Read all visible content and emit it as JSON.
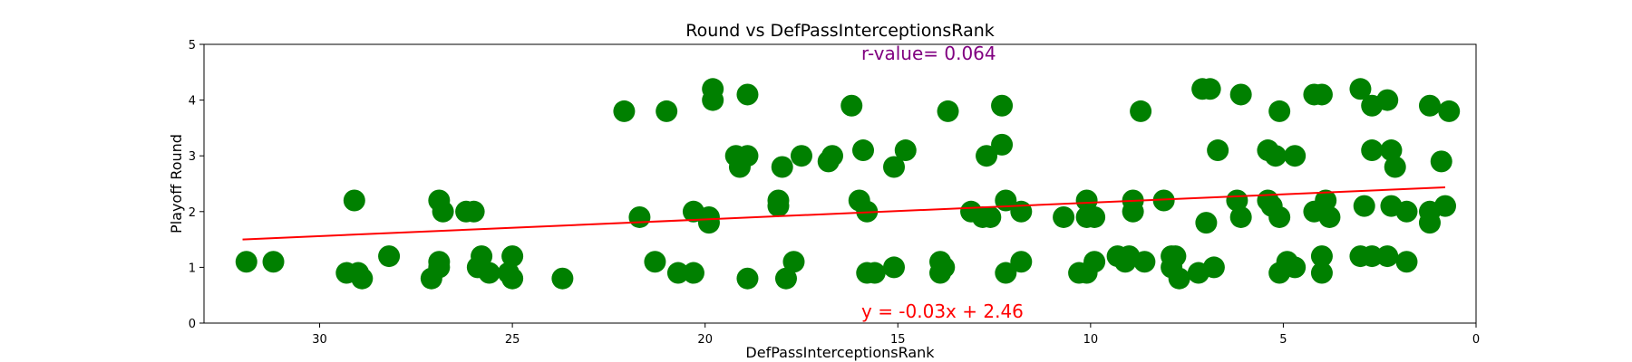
{
  "chart_data": {
    "type": "scatter",
    "title": "Round vs DefPassInterceptionsRank",
    "xlabel": "DefPassInterceptionsRank",
    "ylabel": "Playoff Round",
    "xlim": [
      33,
      0
    ],
    "ylim": [
      0,
      5
    ],
    "x_ticks": [
      30,
      25,
      20,
      15,
      10,
      5,
      0
    ],
    "y_ticks": [
      0,
      1,
      2,
      3,
      4,
      5
    ],
    "x_inverted": true,
    "grid": false,
    "point_color": "#008000",
    "line_color": "#ff0000",
    "regression": {
      "slope": -0.03,
      "intercept": 2.46,
      "x_range": [
        32,
        0.8
      ]
    },
    "annotations": {
      "r_value": {
        "text": "r-value= 0.064",
        "color": "#800080"
      },
      "equation": {
        "text": "y = -0.03x + 2.46",
        "color": "#ff0000"
      }
    },
    "points": [
      {
        "x": 31.9,
        "y": 1.1
      },
      {
        "x": 31.2,
        "y": 1.1
      },
      {
        "x": 29.3,
        "y": 0.9
      },
      {
        "x": 29.0,
        "y": 0.9
      },
      {
        "x": 28.9,
        "y": 0.8
      },
      {
        "x": 29.1,
        "y": 2.2
      },
      {
        "x": 28.2,
        "y": 1.2
      },
      {
        "x": 27.1,
        "y": 0.8
      },
      {
        "x": 26.9,
        "y": 1.0
      },
      {
        "x": 26.9,
        "y": 1.1
      },
      {
        "x": 26.9,
        "y": 2.2
      },
      {
        "x": 26.8,
        "y": 2.0
      },
      {
        "x": 26.2,
        "y": 2.0
      },
      {
        "x": 26.0,
        "y": 2.0
      },
      {
        "x": 25.9,
        "y": 1.0
      },
      {
        "x": 25.8,
        "y": 1.2
      },
      {
        "x": 25.6,
        "y": 0.9
      },
      {
        "x": 25.1,
        "y": 0.9
      },
      {
        "x": 25.0,
        "y": 1.2
      },
      {
        "x": 25.0,
        "y": 0.8
      },
      {
        "x": 23.7,
        "y": 0.8
      },
      {
        "x": 22.1,
        "y": 3.8
      },
      {
        "x": 21.7,
        "y": 1.9
      },
      {
        "x": 21.3,
        "y": 1.1
      },
      {
        "x": 21.0,
        "y": 3.8
      },
      {
        "x": 20.7,
        "y": 0.9
      },
      {
        "x": 20.3,
        "y": 2.0
      },
      {
        "x": 20.3,
        "y": 0.9
      },
      {
        "x": 19.9,
        "y": 1.9
      },
      {
        "x": 19.9,
        "y": 1.8
      },
      {
        "x": 19.8,
        "y": 4.2
      },
      {
        "x": 19.8,
        "y": 4.0
      },
      {
        "x": 19.2,
        "y": 3.0
      },
      {
        "x": 19.1,
        "y": 2.8
      },
      {
        "x": 18.9,
        "y": 3.0
      },
      {
        "x": 18.9,
        "y": 4.1
      },
      {
        "x": 18.9,
        "y": 0.8
      },
      {
        "x": 18.1,
        "y": 2.2
      },
      {
        "x": 18.1,
        "y": 2.1
      },
      {
        "x": 18.0,
        "y": 2.8
      },
      {
        "x": 17.9,
        "y": 0.8
      },
      {
        "x": 17.7,
        "y": 1.1
      },
      {
        "x": 17.5,
        "y": 3.0
      },
      {
        "x": 16.8,
        "y": 2.9
      },
      {
        "x": 16.7,
        "y": 3.0
      },
      {
        "x": 16.2,
        "y": 3.9
      },
      {
        "x": 16.0,
        "y": 2.2
      },
      {
        "x": 15.9,
        "y": 3.1
      },
      {
        "x": 15.8,
        "y": 2.0
      },
      {
        "x": 15.8,
        "y": 0.9
      },
      {
        "x": 15.6,
        "y": 0.9
      },
      {
        "x": 15.1,
        "y": 2.8
      },
      {
        "x": 15.1,
        "y": 1.0
      },
      {
        "x": 14.8,
        "y": 3.1
      },
      {
        "x": 13.9,
        "y": 1.1
      },
      {
        "x": 13.9,
        "y": 0.9
      },
      {
        "x": 13.8,
        "y": 1.0
      },
      {
        "x": 13.7,
        "y": 3.8
      },
      {
        "x": 13.1,
        "y": 2.0
      },
      {
        "x": 12.8,
        "y": 1.9
      },
      {
        "x": 12.7,
        "y": 3.0
      },
      {
        "x": 12.6,
        "y": 1.9
      },
      {
        "x": 12.3,
        "y": 3.2
      },
      {
        "x": 12.3,
        "y": 3.9
      },
      {
        "x": 12.2,
        "y": 2.2
      },
      {
        "x": 12.2,
        "y": 0.9
      },
      {
        "x": 11.8,
        "y": 2.0
      },
      {
        "x": 11.8,
        "y": 1.1
      },
      {
        "x": 10.7,
        "y": 1.9
      },
      {
        "x": 10.3,
        "y": 0.9
      },
      {
        "x": 10.1,
        "y": 2.2
      },
      {
        "x": 10.1,
        "y": 1.9
      },
      {
        "x": 10.1,
        "y": 0.9
      },
      {
        "x": 9.9,
        "y": 1.9
      },
      {
        "x": 9.9,
        "y": 1.1
      },
      {
        "x": 9.3,
        "y": 1.2
      },
      {
        "x": 9.1,
        "y": 1.1
      },
      {
        "x": 9.0,
        "y": 1.2
      },
      {
        "x": 8.9,
        "y": 2.2
      },
      {
        "x": 8.9,
        "y": 2.0
      },
      {
        "x": 8.7,
        "y": 3.8
      },
      {
        "x": 8.6,
        "y": 1.1
      },
      {
        "x": 8.1,
        "y": 2.2
      },
      {
        "x": 7.9,
        "y": 1.2
      },
      {
        "x": 7.9,
        "y": 1.0
      },
      {
        "x": 7.8,
        "y": 1.2
      },
      {
        "x": 7.7,
        "y": 0.8
      },
      {
        "x": 7.2,
        "y": 0.9
      },
      {
        "x": 7.1,
        "y": 4.2
      },
      {
        "x": 7.0,
        "y": 1.8
      },
      {
        "x": 6.9,
        "y": 4.2
      },
      {
        "x": 6.8,
        "y": 1.0
      },
      {
        "x": 6.7,
        "y": 3.1
      },
      {
        "x": 6.2,
        "y": 2.2
      },
      {
        "x": 6.1,
        "y": 4.1
      },
      {
        "x": 6.1,
        "y": 1.9
      },
      {
        "x": 5.4,
        "y": 3.1
      },
      {
        "x": 5.4,
        "y": 2.2
      },
      {
        "x": 5.3,
        "y": 2.1
      },
      {
        "x": 5.2,
        "y": 3.0
      },
      {
        "x": 5.1,
        "y": 3.8
      },
      {
        "x": 5.1,
        "y": 1.9
      },
      {
        "x": 5.1,
        "y": 0.9
      },
      {
        "x": 4.9,
        "y": 1.1
      },
      {
        "x": 4.7,
        "y": 1.0
      },
      {
        "x": 4.7,
        "y": 3.0
      },
      {
        "x": 4.2,
        "y": 4.1
      },
      {
        "x": 4.2,
        "y": 2.0
      },
      {
        "x": 4.0,
        "y": 4.1
      },
      {
        "x": 4.0,
        "y": 1.2
      },
      {
        "x": 4.0,
        "y": 0.9
      },
      {
        "x": 3.9,
        "y": 2.2
      },
      {
        "x": 3.8,
        "y": 1.9
      },
      {
        "x": 3.0,
        "y": 4.2
      },
      {
        "x": 3.0,
        "y": 1.2
      },
      {
        "x": 2.9,
        "y": 2.1
      },
      {
        "x": 2.7,
        "y": 1.2
      },
      {
        "x": 2.7,
        "y": 3.9
      },
      {
        "x": 2.7,
        "y": 3.1
      },
      {
        "x": 2.3,
        "y": 4.0
      },
      {
        "x": 2.3,
        "y": 1.2
      },
      {
        "x": 2.2,
        "y": 3.1
      },
      {
        "x": 2.2,
        "y": 2.1
      },
      {
        "x": 2.1,
        "y": 2.8
      },
      {
        "x": 1.8,
        "y": 2.0
      },
      {
        "x": 1.8,
        "y": 1.1
      },
      {
        "x": 1.2,
        "y": 3.9
      },
      {
        "x": 1.2,
        "y": 2.0
      },
      {
        "x": 1.2,
        "y": 1.8
      },
      {
        "x": 0.9,
        "y": 2.9
      },
      {
        "x": 0.8,
        "y": 2.1
      },
      {
        "x": 0.7,
        "y": 3.8
      }
    ]
  }
}
